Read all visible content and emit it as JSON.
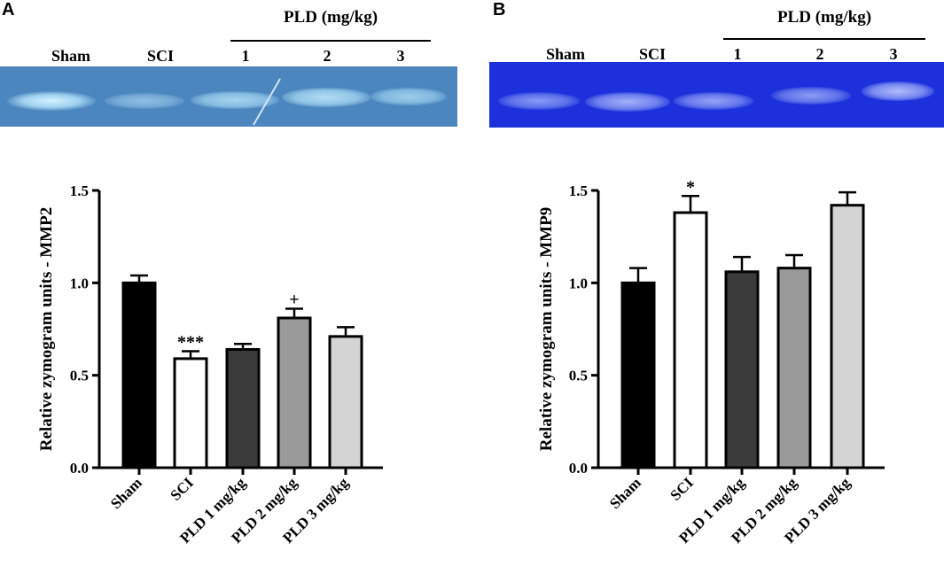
{
  "figure": {
    "panel_a": {
      "letter": "A",
      "gel_header": "PLD (mg/kg)",
      "gel_lanes": [
        "Sham",
        "SCI",
        "1",
        "2",
        "3"
      ]
    },
    "panel_b": {
      "letter": "B",
      "gel_header": "PLD (mg/kg)",
      "gel_lanes": [
        "Sham",
        "SCI",
        "1",
        "2",
        "3"
      ]
    }
  },
  "colors": {
    "sham": "#000000",
    "sci": "#ffffff",
    "pld1": "#3b3b3b",
    "pld2": "#9a9a9a",
    "pld3": "#d4d4d4",
    "gel_a": "#4a88c2",
    "gel_b": "#1b2fd8"
  },
  "chart_data": [
    {
      "type": "bar",
      "title": "",
      "xlabel": "",
      "ylabel": "Relative zymogram units - MMP2",
      "categories": [
        "Sham",
        "SCI",
        "PLD 1 mg/kg",
        "PLD 2 mg/kg",
        "PLD 3 mg/kg"
      ],
      "values": [
        1.0,
        0.59,
        0.64,
        0.81,
        0.71
      ],
      "errors": [
        0.04,
        0.04,
        0.03,
        0.05,
        0.05
      ],
      "annotations": [
        "",
        "***",
        "",
        "+",
        ""
      ],
      "ylim": [
        0,
        1.5
      ],
      "yticks": [
        "0.0",
        "0.5",
        "1.0",
        "1.5"
      ]
    },
    {
      "type": "bar",
      "title": "",
      "xlabel": "",
      "ylabel": "Relative zymogram units - MMP9",
      "categories": [
        "Sham",
        "SCI",
        "PLD 1 mg/kg",
        "PLD 2 mg/kg",
        "PLD 3 mg/kg"
      ],
      "values": [
        1.0,
        1.38,
        1.06,
        1.08,
        1.42
      ],
      "errors": [
        0.08,
        0.09,
        0.08,
        0.07,
        0.07
      ],
      "annotations": [
        "",
        "*",
        "",
        "",
        ""
      ],
      "ylim": [
        0,
        1.5
      ],
      "yticks": [
        "0.0",
        "0.5",
        "1.0",
        "1.5"
      ]
    }
  ]
}
